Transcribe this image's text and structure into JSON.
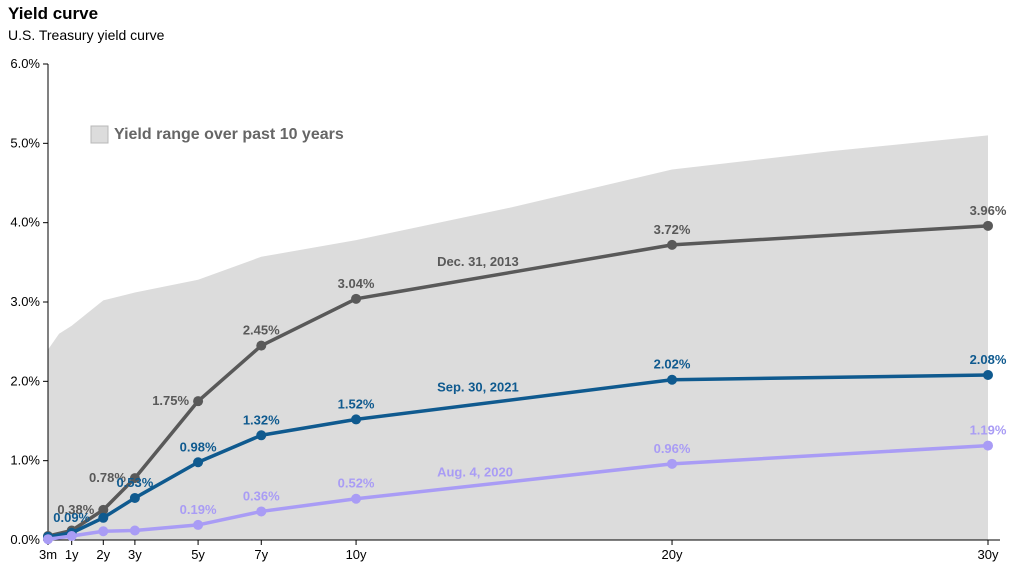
{
  "title": "Yield curve",
  "subtitle": "U.S. Treasury yield curve",
  "legend": {
    "label": "Yield range over past 10 years"
  },
  "chart_data": {
    "type": "line",
    "title": "Yield curve",
    "subtitle": "U.S. Treasury yield curve",
    "x_labels": [
      "3m",
      "1y",
      "2y",
      "3y",
      "5y",
      "7y",
      "10y",
      "20y",
      "30y"
    ],
    "x_years": [
      0.25,
      1,
      2,
      3,
      5,
      7,
      10,
      20,
      30
    ],
    "ylim": [
      0,
      6
    ],
    "y_ticks": [
      "0.0%",
      "1.0%",
      "2.0%",
      "3.0%",
      "4.0%",
      "5.0%",
      "6.0%"
    ],
    "y_tick_values": [
      0,
      1,
      2,
      3,
      4,
      5,
      6
    ],
    "range_band": {
      "name": "Yield range over past 10 years",
      "color": "#dcdcdc",
      "x_years": [
        0.25,
        0.6,
        1,
        2,
        3,
        5,
        7,
        10,
        15,
        20,
        25,
        30
      ],
      "low": [
        0,
        0,
        0,
        0,
        0,
        0,
        0,
        0,
        0,
        0,
        0,
        0
      ],
      "high": [
        2.4,
        2.6,
        2.7,
        3.02,
        3.12,
        3.28,
        3.57,
        3.78,
        4.2,
        4.67,
        4.9,
        5.1
      ]
    },
    "series": [
      {
        "name": "Dec. 31, 2013",
        "color": "#595959",
        "values": [
          0.05,
          0.12,
          0.38,
          0.78,
          1.75,
          2.45,
          3.04,
          3.72,
          3.96
        ],
        "labels": [
          "",
          "",
          "0.38%",
          "0.78%",
          "1.75%",
          "2.45%",
          "3.04%",
          "3.72%",
          "3.96%"
        ]
      },
      {
        "name": "Sep. 30, 2021",
        "color": "#0f5a8f",
        "values": [
          0.04,
          0.09,
          0.28,
          0.53,
          0.98,
          1.32,
          1.52,
          2.02,
          2.08
        ],
        "labels": [
          "",
          "0.09%",
          "",
          "0.53%",
          "0.98%",
          "1.32%",
          "1.52%",
          "2.02%",
          "2.08%"
        ]
      },
      {
        "name": "Aug. 4, 2020",
        "color": "#a99cf5",
        "values": [
          0.01,
          0.05,
          0.11,
          0.12,
          0.19,
          0.36,
          0.52,
          0.96,
          1.19
        ],
        "labels": [
          "",
          "",
          "",
          "",
          "0.19%",
          "0.36%",
          "0.52%",
          "0.96%",
          "1.19%"
        ]
      }
    ]
  }
}
